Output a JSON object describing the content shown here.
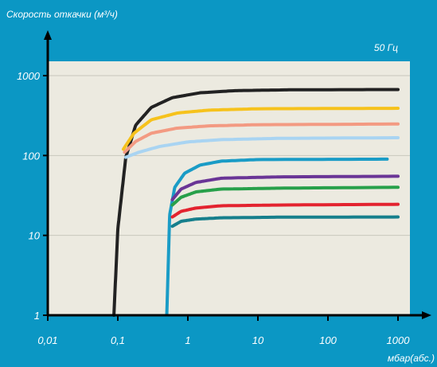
{
  "chart_data": {
    "type": "line",
    "ylabel": "Скорость откачки (м³/ч)",
    "xlabel": "мбар(абс.)",
    "annotation": "50 Гц",
    "x_scale": "log",
    "y_scale": "log",
    "xlim": [
      0.01,
      1000
    ],
    "ylim": [
      1,
      1500
    ],
    "x_ticks": [
      "0,01",
      "0,1",
      "1",
      "10",
      "100",
      "1000"
    ],
    "x_tick_values": [
      0.01,
      0.1,
      1,
      10,
      100,
      1000
    ],
    "y_ticks": [
      "1",
      "10",
      "100",
      "1000"
    ],
    "y_tick_values": [
      1,
      10,
      100,
      1000
    ],
    "grid_y": true,
    "background": "#eceae0",
    "series": [
      {
        "color": "#222222",
        "points": [
          [
            0.088,
            1
          ],
          [
            0.1,
            12
          ],
          [
            0.13,
            95
          ],
          [
            0.18,
            240
          ],
          [
            0.3,
            400
          ],
          [
            0.6,
            530
          ],
          [
            1.5,
            610
          ],
          [
            5,
            650
          ],
          [
            30,
            665
          ],
          [
            1000,
            670
          ]
        ]
      },
      {
        "color": "#f6c21c",
        "points": [
          [
            0.12,
            120
          ],
          [
            0.17,
            190
          ],
          [
            0.3,
            280
          ],
          [
            0.7,
            340
          ],
          [
            2,
            370
          ],
          [
            10,
            385
          ],
          [
            1000,
            390
          ]
        ]
      },
      {
        "color": "#f39a82",
        "points": [
          [
            0.125,
            110
          ],
          [
            0.18,
            150
          ],
          [
            0.3,
            190
          ],
          [
            0.7,
            220
          ],
          [
            2,
            235
          ],
          [
            10,
            243
          ],
          [
            1000,
            248
          ]
        ]
      },
      {
        "color": "#a9d4f2",
        "points": [
          [
            0.13,
            95
          ],
          [
            0.2,
            110
          ],
          [
            0.4,
            130
          ],
          [
            1,
            148
          ],
          [
            3,
            158
          ],
          [
            20,
            164
          ],
          [
            1000,
            167
          ]
        ]
      },
      {
        "color": "#1a9cc6",
        "points": [
          [
            0.5,
            1
          ],
          [
            0.55,
            18
          ],
          [
            0.65,
            40
          ],
          [
            0.9,
            60
          ],
          [
            1.5,
            76
          ],
          [
            3,
            85
          ],
          [
            10,
            89
          ],
          [
            700,
            90
          ]
        ]
      },
      {
        "color": "#6a3596",
        "points": [
          [
            0.6,
            28
          ],
          [
            0.8,
            38
          ],
          [
            1.3,
            46
          ],
          [
            3,
            52
          ],
          [
            20,
            54
          ],
          [
            1000,
            55
          ]
        ]
      },
      {
        "color": "#27a04a",
        "points": [
          [
            0.6,
            24
          ],
          [
            0.8,
            30
          ],
          [
            1.3,
            35
          ],
          [
            3,
            38
          ],
          [
            20,
            39
          ],
          [
            1000,
            40
          ]
        ]
      },
      {
        "color": "#e3232f",
        "points": [
          [
            0.6,
            17
          ],
          [
            0.8,
            20
          ],
          [
            1.3,
            22
          ],
          [
            3,
            23.5
          ],
          [
            20,
            24
          ],
          [
            1000,
            24.5
          ]
        ]
      },
      {
        "color": "#167f8c",
        "points": [
          [
            0.6,
            13
          ],
          [
            0.8,
            15
          ],
          [
            1.3,
            16
          ],
          [
            3,
            16.6
          ],
          [
            20,
            16.9
          ],
          [
            1000,
            17
          ]
        ]
      }
    ]
  }
}
